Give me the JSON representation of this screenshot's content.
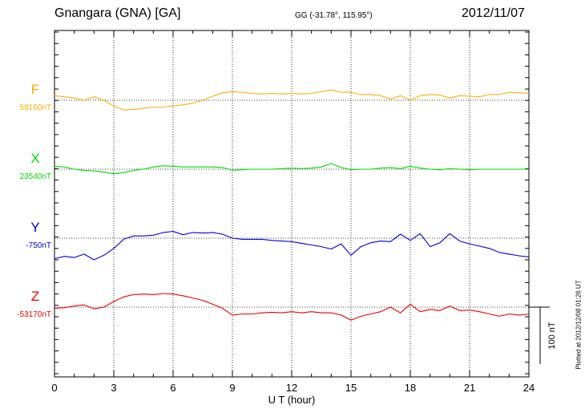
{
  "header": {
    "title": "Gnangara (GNA)  [GA]",
    "coords": "GG (-31.78°, 115.95°)",
    "date": "2012/11/07"
  },
  "footer": {
    "plotted": "Plotted at 2012/12/08 01:26 UT"
  },
  "chart_data": {
    "type": "line",
    "xlabel": "U T (hour)",
    "xlim": [
      0,
      24
    ],
    "xticks": [
      0,
      3,
      6,
      9,
      12,
      15,
      18,
      21,
      24
    ],
    "grid": true,
    "scale_bar": {
      "label": "100 nT",
      "value_nT": 100
    },
    "series": [
      {
        "name": "F",
        "baseline_label": "58160nT",
        "baseline_nT": 58160,
        "color": "#ffb000",
        "x": [
          0,
          0.5,
          1,
          1.5,
          2,
          2.5,
          3,
          3.5,
          4,
          4.5,
          5,
          5.5,
          6,
          6.5,
          7,
          7.5,
          8,
          8.5,
          9,
          9.5,
          10,
          10.5,
          11,
          11.5,
          12,
          12.5,
          13,
          13.5,
          14,
          14.5,
          15,
          15.5,
          16,
          16.5,
          17,
          17.5,
          18,
          18.5,
          19,
          19.5,
          20,
          20.5,
          21,
          21.5,
          22,
          22.5,
          23,
          23.5,
          24
        ],
        "y": [
          58168,
          58166,
          58164,
          58160,
          58166,
          58160,
          58150,
          58143,
          58144,
          58146,
          58148,
          58148,
          58150,
          58152,
          58155,
          58160,
          58167,
          58173,
          58175,
          58174,
          58172,
          58171,
          58172,
          58171,
          58172,
          58171,
          58172,
          58175,
          58178,
          58174,
          58174,
          58170,
          58170,
          58168,
          58162,
          58168,
          58160,
          58168,
          58170,
          58169,
          58164,
          58168,
          58167,
          58166,
          58170,
          58170,
          58174,
          58173,
          58172
        ]
      },
      {
        "name": "X",
        "baseline_label": "23540nT",
        "baseline_nT": 23540,
        "color": "#00dd00",
        "x": [
          0,
          0.5,
          1,
          1.5,
          2,
          2.5,
          3,
          3.5,
          4,
          4.5,
          5,
          5.5,
          6,
          6.5,
          7,
          7.5,
          8,
          8.5,
          9,
          9.5,
          10,
          10.5,
          11,
          11.5,
          12,
          12.5,
          13,
          13.5,
          14,
          14.5,
          15,
          15.5,
          16,
          16.5,
          17,
          17.5,
          18,
          18.5,
          19,
          19.5,
          20,
          20.5,
          21,
          21.5,
          22,
          22.5,
          23,
          23.5,
          24
        ],
        "y": [
          23545,
          23544,
          23540,
          23538,
          23537,
          23535,
          23532,
          23534,
          23538,
          23540,
          23544,
          23546,
          23545,
          23544,
          23544,
          23544,
          23544,
          23543,
          23538,
          23539,
          23540,
          23540,
          23540,
          23541,
          23542,
          23541,
          23542,
          23544,
          23550,
          23543,
          23539,
          23540,
          23540,
          23542,
          23543,
          23541,
          23545,
          23542,
          23540,
          23539,
          23541,
          23540,
          23539,
          23540,
          23540,
          23540,
          23540,
          23540,
          23540
        ]
      },
      {
        "name": "Y",
        "baseline_label": "-750nT",
        "baseline_nT": -750,
        "color": "#0000dd",
        "x": [
          0,
          0.5,
          1,
          1.5,
          2,
          2.5,
          3,
          3.5,
          4,
          4.5,
          5,
          5.5,
          6,
          6.5,
          7,
          7.5,
          8,
          8.5,
          9,
          9.5,
          10,
          10.5,
          11,
          11.5,
          12,
          12.5,
          13,
          13.5,
          14,
          14.5,
          15,
          15.5,
          16,
          16.5,
          17,
          17.5,
          18,
          18.5,
          19,
          19.5,
          20,
          20.5,
          21,
          21.5,
          22,
          22.5,
          23,
          23.5,
          24
        ],
        "y": [
          -786,
          -782,
          -784,
          -778,
          -788,
          -780,
          -768,
          -752,
          -746,
          -746,
          -745,
          -740,
          -738,
          -744,
          -740,
          -741,
          -740,
          -743,
          -750,
          -752,
          -752,
          -752,
          -754,
          -755,
          -756,
          -759,
          -762,
          -765,
          -769,
          -760,
          -780,
          -765,
          -758,
          -755,
          -756,
          -743,
          -754,
          -742,
          -765,
          -758,
          -742,
          -755,
          -760,
          -764,
          -768,
          -775,
          -778,
          -781,
          -783
        ]
      },
      {
        "name": "Z",
        "baseline_label": "-53170nT",
        "baseline_nT": -53170,
        "color": "#ee0000",
        "x": [
          0,
          0.5,
          1,
          1.5,
          2,
          2.5,
          3,
          3.5,
          4,
          4.5,
          5,
          5.5,
          6,
          6.5,
          7,
          7.5,
          8,
          8.5,
          9,
          9.5,
          10,
          10.5,
          11,
          11.5,
          12,
          12.5,
          13,
          13.5,
          14,
          14.5,
          15,
          15.5,
          16,
          16.5,
          17,
          17.5,
          18,
          18.5,
          19,
          19.5,
          20,
          20.5,
          21,
          21.5,
          22,
          22.5,
          23,
          23.5,
          24
        ],
        "y": [
          -53172,
          -53171,
          -53168,
          -53166,
          -53173,
          -53170,
          -53160,
          -53152,
          -53148,
          -53147,
          -53148,
          -53146,
          -53147,
          -53150,
          -53154,
          -53158,
          -53165,
          -53172,
          -53184,
          -53182,
          -53182,
          -53180,
          -53179,
          -53180,
          -53178,
          -53180,
          -53178,
          -53180,
          -53180,
          -53184,
          -53193,
          -53186,
          -53182,
          -53178,
          -53170,
          -53180,
          -53165,
          -53178,
          -53174,
          -53176,
          -53168,
          -53176,
          -53175,
          -53178,
          -53182,
          -53186,
          -53182,
          -53184,
          -53182
        ]
      }
    ]
  }
}
